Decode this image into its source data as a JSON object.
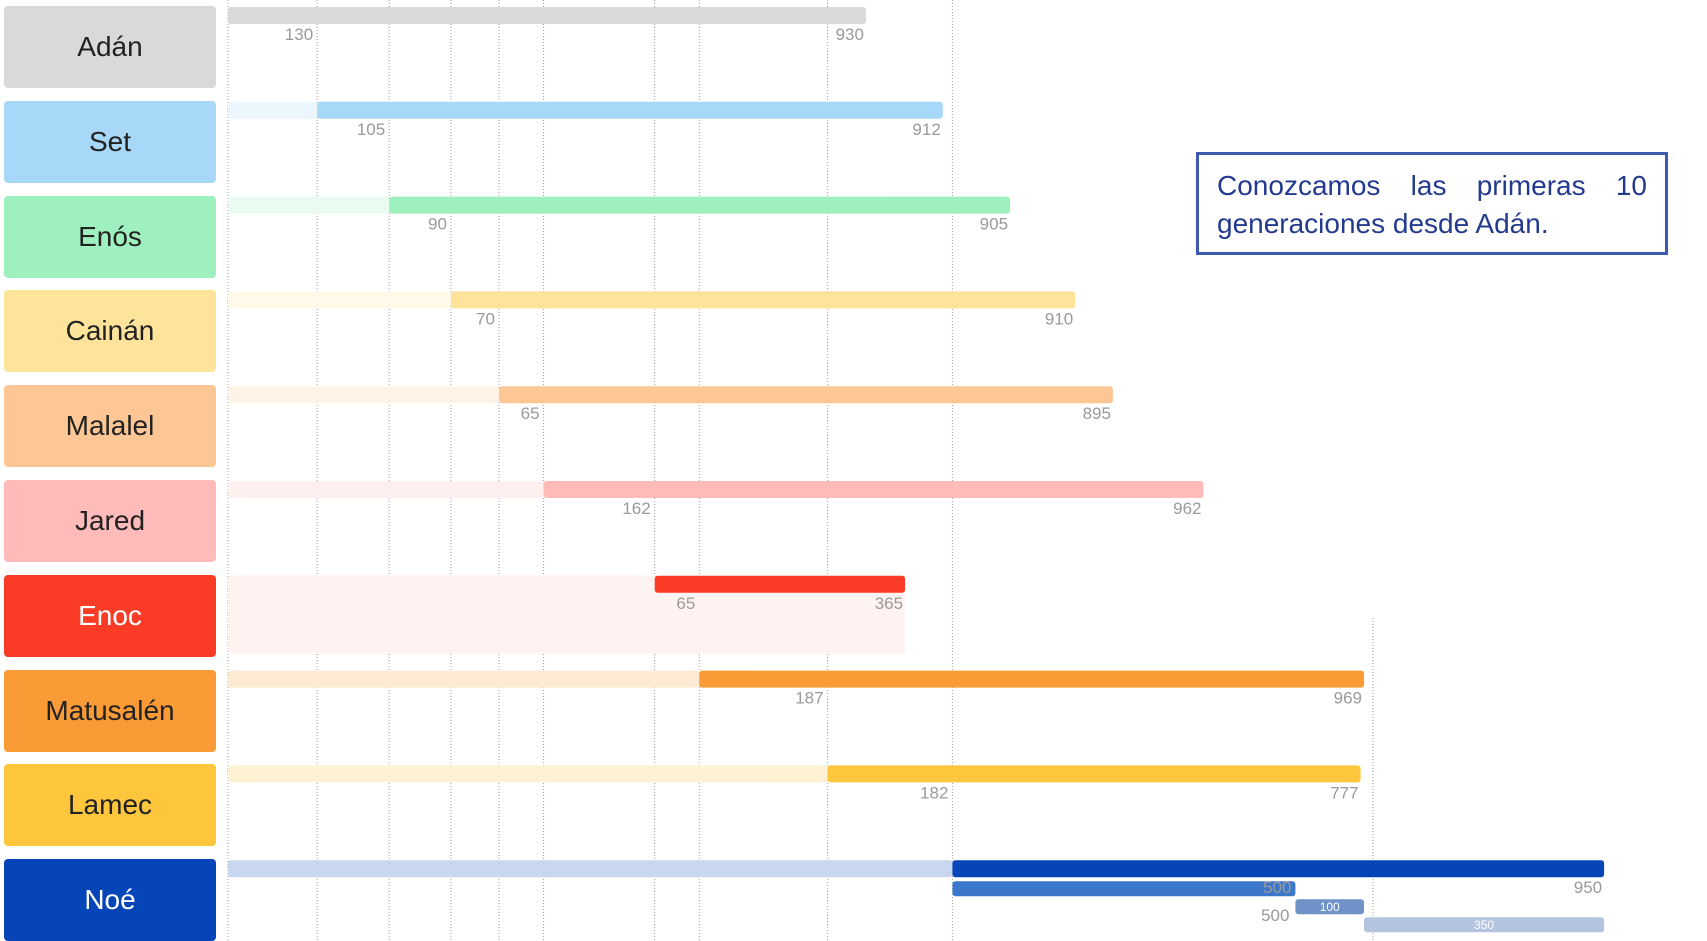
{
  "note": {
    "text": "Conozcamos las primeras 10 generaciones desde Adán."
  },
  "chart_data": {
    "type": "timeline",
    "rows": [
      {
        "name": "Adán",
        "color": "#d9d9d9",
        "text_color": "#222222",
        "age_at_son": 130,
        "total_years": 930
      },
      {
        "name": "Set",
        "color": "#a8d8f8",
        "text_color": "#222222",
        "age_at_son": 105,
        "total_years": 912
      },
      {
        "name": "Enós",
        "color": "#9ff0bf",
        "text_color": "#222222",
        "age_at_son": 90,
        "total_years": 905
      },
      {
        "name": "Cainán",
        "color": "#fde49a",
        "text_color": "#222222",
        "age_at_son": 70,
        "total_years": 910
      },
      {
        "name": "Malalel",
        "color": "#fdc795",
        "text_color": "#222222",
        "age_at_son": 65,
        "total_years": 895
      },
      {
        "name": "Jared",
        "color": "#ffbaba",
        "text_color": "#222222",
        "age_at_son": 162,
        "total_years": 962
      },
      {
        "name": "Enoc",
        "color": "#fa3b26",
        "text_color": "#ffffff",
        "age_at_son": 65,
        "total_years": 365
      },
      {
        "name": "Matusalén",
        "color": "#fb9b36",
        "text_color": "#222222",
        "age_at_son": 187,
        "total_years": 969
      },
      {
        "name": "Lamec",
        "color": "#fdc63c",
        "text_color": "#222222",
        "age_at_son": 182,
        "total_years": 777
      },
      {
        "name": "Noé",
        "color": "#0645b7",
        "text_color": "#ffffff",
        "age_at_son": 500,
        "total_years": 950,
        "extra_segments": [
          {
            "label": "500",
            "value": 500,
            "color": "#3b78cc"
          },
          {
            "label": "100",
            "value": 100,
            "color": "#6f93c8"
          },
          {
            "label": "350",
            "value": 350,
            "color": "#b4c4de"
          }
        ]
      }
    ]
  }
}
